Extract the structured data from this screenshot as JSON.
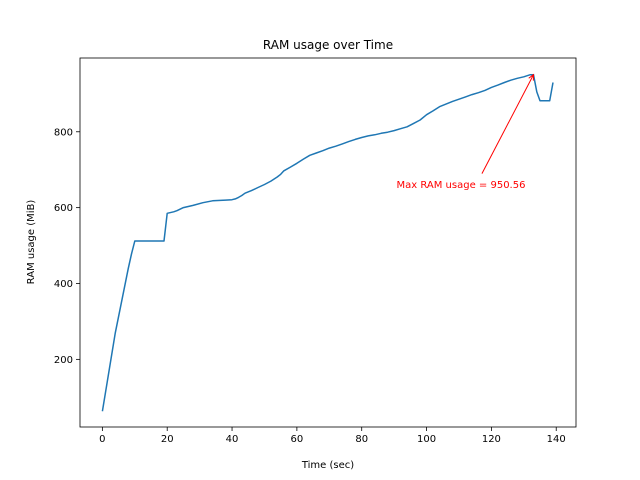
{
  "chart_data": {
    "type": "line",
    "title": "RAM usage over Time",
    "xlabel": "Time (sec)",
    "ylabel": "RAM usage (MiB)",
    "xlim": [
      -6.9,
      146.1
    ],
    "ylim": [
      21.7,
      994.5
    ],
    "x_ticks": [
      0,
      20,
      40,
      60,
      80,
      100,
      120,
      140
    ],
    "y_ticks": [
      200,
      400,
      600,
      800
    ],
    "grid": false,
    "series": [
      {
        "color": "#1f77b4",
        "x": [
          0,
          4,
          8,
          9,
          10,
          12,
          19,
          20,
          22,
          23,
          25,
          28,
          31,
          34,
          38,
          40,
          41,
          42,
          43,
          44,
          46,
          48,
          50,
          52,
          54,
          55,
          56,
          58,
          60,
          62,
          64,
          66,
          68,
          70,
          72,
          74,
          76,
          78,
          80,
          82,
          84,
          86,
          88,
          90,
          92,
          94,
          96,
          98,
          100,
          102,
          104,
          106,
          108,
          110,
          112,
          114,
          116,
          118,
          120,
          122,
          124,
          126,
          128,
          130,
          132,
          133,
          134,
          135,
          136,
          138,
          139
        ],
        "y": [
          63,
          270,
          440,
          478,
          512,
          512,
          512,
          585,
          589,
          592,
          600,
          606,
          613,
          618,
          620,
          621,
          623,
          627,
          632,
          638,
          645,
          653,
          661,
          670,
          681,
          688,
          697,
          707,
          717,
          728,
          738,
          744,
          750,
          757,
          762,
          768,
          774,
          780,
          785,
          789,
          792,
          796,
          799,
          803,
          808,
          813,
          822,
          831,
          845,
          855,
          866,
          873,
          880,
          886,
          892,
          898,
          903,
          909,
          917,
          923,
          930,
          936,
          941,
          945,
          950.56,
          950.56,
          905,
          882,
          882,
          882,
          930
        ]
      }
    ],
    "annotation": {
      "text": "Max RAM usage = 950.56",
      "point": [
        133,
        950.56
      ],
      "text_at": [
        114,
        658
      ],
      "color": "#ff0000"
    }
  }
}
